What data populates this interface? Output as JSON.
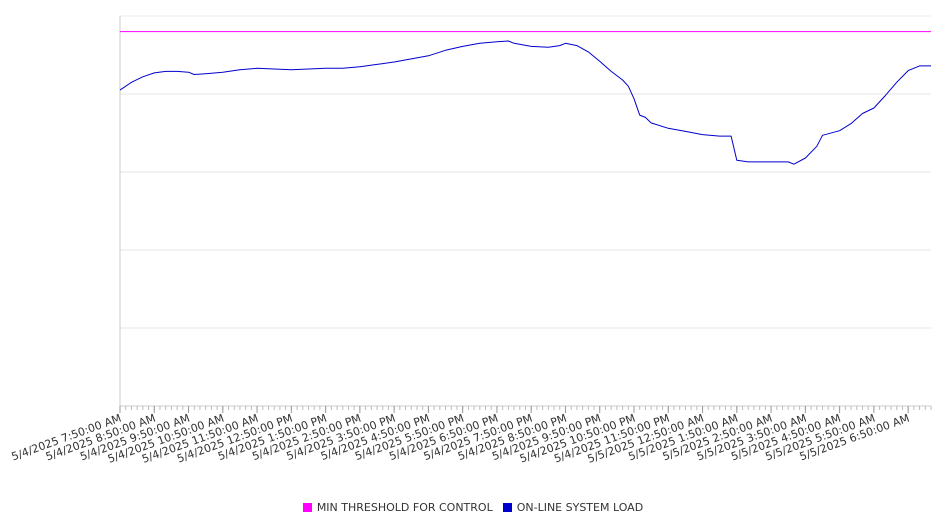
{
  "chart_data": {
    "type": "line",
    "title": "",
    "xlabel": "",
    "ylabel": "",
    "x_range": [
      "5/4/2025 7:50:00 AM",
      "5/5/2025 7:30:00 AM"
    ],
    "y_tick_labels_shown": false,
    "grid": {
      "horizontal": true,
      "vertical": false
    },
    "legend_placement": "bottom-center",
    "x_tick_labels": [
      "5/4/2025 7:50:00 AM",
      "5/4/2025 8:50:00 AM",
      "5/4/2025 9:50:00 AM",
      "5/4/2025 10:50:00 AM",
      "5/4/2025 11:50:00 AM",
      "5/4/2025 12:50:00 PM",
      "5/4/2025 1:50:00 PM",
      "5/4/2025 2:50:00 PM",
      "5/4/2025 3:50:00 PM",
      "5/4/2025 4:50:00 PM",
      "5/4/2025 5:50:00 PM",
      "5/4/2025 6:50:00 PM",
      "5/4/2025 7:50:00 PM",
      "5/4/2025 8:50:00 PM",
      "5/4/2025 9:50:00 PM",
      "5/4/2025 10:50:00 PM",
      "5/4/2025 11:50:00 PM",
      "5/5/2025 12:50:00 AM",
      "5/5/2025 1:50:00 AM",
      "5/5/2025 2:50:00 AM",
      "5/5/2025 3:50:00 AM",
      "5/5/2025 4:50:00 AM",
      "5/5/2025 5:50:00 AM",
      "5/5/2025 6:50:00 AM"
    ],
    "series": [
      {
        "name": "MIN THRESHOLD FOR CONTROL",
        "color": "#ff00ff",
        "points": [
          {
            "x": "5/4/2025 7:50:00 AM",
            "y": 480
          },
          {
            "x": "5/5/2025 7:30:00 AM",
            "y": 480
          }
        ]
      },
      {
        "name": "ON-LINE SYSTEM LOAD",
        "color": "#0000cc",
        "points": [
          {
            "x": "5/4/2025 7:50:00 AM",
            "y": 405
          },
          {
            "x": "5/4/2025 8:10:00 AM",
            "y": 415
          },
          {
            "x": "5/4/2025 8:30:00 AM",
            "y": 422
          },
          {
            "x": "5/4/2025 8:50:00 AM",
            "y": 427
          },
          {
            "x": "5/4/2025 9:10:00 AM",
            "y": 429
          },
          {
            "x": "5/4/2025 9:30:00 AM",
            "y": 429
          },
          {
            "x": "5/4/2025 9:50:00 AM",
            "y": 428
          },
          {
            "x": "5/4/2025 10:00:00 AM",
            "y": 425
          },
          {
            "x": "5/4/2025 10:20:00 AM",
            "y": 426
          },
          {
            "x": "5/4/2025 10:50:00 AM",
            "y": 428
          },
          {
            "x": "5/4/2025 11:20:00 AM",
            "y": 431
          },
          {
            "x": "5/4/2025 11:50:00 AM",
            "y": 433
          },
          {
            "x": "5/4/2025 12:20:00 PM",
            "y": 432
          },
          {
            "x": "5/4/2025 12:50:00 PM",
            "y": 431
          },
          {
            "x": "5/4/2025 1:20:00 PM",
            "y": 432
          },
          {
            "x": "5/4/2025 1:50:00 PM",
            "y": 433
          },
          {
            "x": "5/4/2025 2:20:00 PM",
            "y": 433
          },
          {
            "x": "5/4/2025 2:50:00 PM",
            "y": 435
          },
          {
            "x": "5/4/2025 3:20:00 PM",
            "y": 438
          },
          {
            "x": "5/4/2025 3:50:00 PM",
            "y": 441
          },
          {
            "x": "5/4/2025 4:20:00 PM",
            "y": 445
          },
          {
            "x": "5/4/2025 4:50:00 PM",
            "y": 449
          },
          {
            "x": "5/4/2025 5:20:00 PM",
            "y": 456
          },
          {
            "x": "5/4/2025 5:50:00 PM",
            "y": 461
          },
          {
            "x": "5/4/2025 6:20:00 PM",
            "y": 465
          },
          {
            "x": "5/4/2025 6:50:00 PM",
            "y": 467
          },
          {
            "x": "5/4/2025 7:10:00 PM",
            "y": 468
          },
          {
            "x": "5/4/2025 7:20:00 PM",
            "y": 465
          },
          {
            "x": "5/4/2025 7:50:00 PM",
            "y": 461
          },
          {
            "x": "5/4/2025 8:20:00 PM",
            "y": 460
          },
          {
            "x": "5/4/2025 8:40:00 PM",
            "y": 462
          },
          {
            "x": "5/4/2025 8:50:00 PM",
            "y": 465
          },
          {
            "x": "5/4/2025 9:10:00 PM",
            "y": 462
          },
          {
            "x": "5/4/2025 9:30:00 PM",
            "y": 454
          },
          {
            "x": "5/4/2025 9:50:00 PM",
            "y": 442
          },
          {
            "x": "5/4/2025 10:10:00 PM",
            "y": 429
          },
          {
            "x": "5/4/2025 10:30:00 PM",
            "y": 418
          },
          {
            "x": "5/4/2025 10:40:00 PM",
            "y": 410
          },
          {
            "x": "5/4/2025 10:50:00 PM",
            "y": 394
          },
          {
            "x": "5/4/2025 11:00:00 PM",
            "y": 373
          },
          {
            "x": "5/4/2025 11:10:00 PM",
            "y": 370
          },
          {
            "x": "5/4/2025 11:20:00 PM",
            "y": 363
          },
          {
            "x": "5/4/2025 11:50:00 PM",
            "y": 356
          },
          {
            "x": "5/5/2025 12:20:00 AM",
            "y": 352
          },
          {
            "x": "5/5/2025 12:50:00 AM",
            "y": 348
          },
          {
            "x": "5/5/2025 1:20:00 AM",
            "y": 346
          },
          {
            "x": "5/5/2025 1:40:00 AM",
            "y": 346
          },
          {
            "x": "5/5/2025 1:50:00 AM",
            "y": 315
          },
          {
            "x": "5/5/2025 2:10:00 AM",
            "y": 313
          },
          {
            "x": "5/5/2025 2:50:00 AM",
            "y": 313
          },
          {
            "x": "5/5/2025 3:20:00 AM",
            "y": 313
          },
          {
            "x": "5/5/2025 3:30:00 AM",
            "y": 310
          },
          {
            "x": "5/5/2025 3:50:00 AM",
            "y": 318
          },
          {
            "x": "5/5/2025 4:10:00 AM",
            "y": 333
          },
          {
            "x": "5/5/2025 4:20:00 AM",
            "y": 347
          },
          {
            "x": "5/5/2025 4:50:00 AM",
            "y": 353
          },
          {
            "x": "5/5/2025 5:10:00 AM",
            "y": 362
          },
          {
            "x": "5/5/2025 5:30:00 AM",
            "y": 375
          },
          {
            "x": "5/5/2025 5:50:00 AM",
            "y": 382
          },
          {
            "x": "5/5/2025 6:10:00 AM",
            "y": 398
          },
          {
            "x": "5/5/2025 6:30:00 AM",
            "y": 415
          },
          {
            "x": "5/5/2025 6:50:00 AM",
            "y": 430
          },
          {
            "x": "5/5/2025 7:10:00 AM",
            "y": 436
          },
          {
            "x": "5/5/2025 7:30:00 AM",
            "y": 436
          }
        ]
      }
    ],
    "colors": {
      "axis": "#cccccc",
      "grid": "#e6e6e6",
      "tick_text": "#333333"
    }
  },
  "legend": {
    "items": [
      {
        "label": "MIN THRESHOLD FOR CONTROL",
        "color": "#ff00ff"
      },
      {
        "label": "ON-LINE SYSTEM LOAD",
        "color": "#0000cc"
      }
    ]
  }
}
